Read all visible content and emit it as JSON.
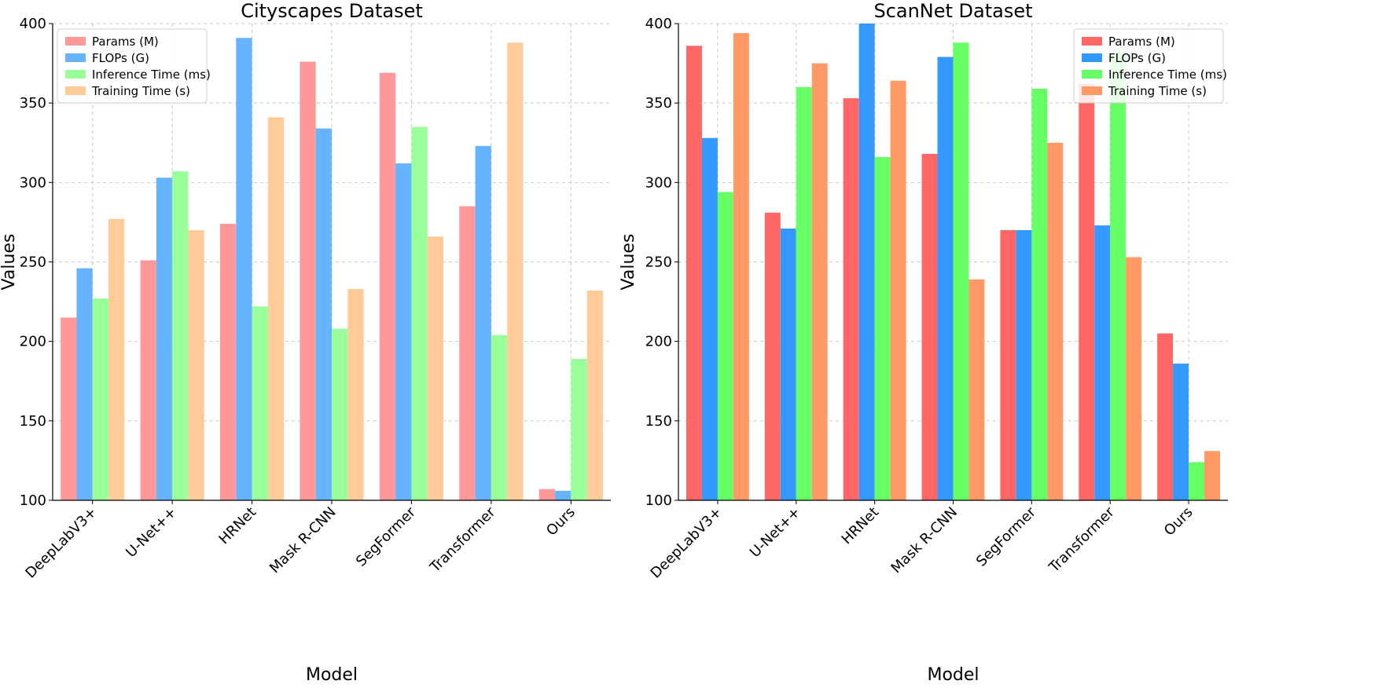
{
  "figure": {
    "background": "#ffffff"
  },
  "chart_data": [
    {
      "type": "bar",
      "title": "Cityscapes Dataset",
      "xlabel": "Model",
      "ylabel": "Values",
      "ylim": [
        100,
        400
      ],
      "yticks": [
        "100",
        "150",
        "200",
        "250",
        "300",
        "350",
        "400"
      ],
      "grid": true,
      "legend_position": "top-left",
      "categories": [
        "DeepLabV3+",
        "U-Net++",
        "HRNet",
        "Mask R-CNN",
        "SegFormer",
        "Transformer",
        "Ours"
      ],
      "series": [
        {
          "name": "Params (M)",
          "color": "#ff9999",
          "values": [
            215,
            251,
            274,
            376,
            369,
            285,
            107
          ]
        },
        {
          "name": "FLOPs (G)",
          "color": "#66b3ff",
          "values": [
            246,
            303,
            391,
            334,
            312,
            323,
            106
          ]
        },
        {
          "name": "Inference Time (ms)",
          "color": "#99ff99",
          "values": [
            227,
            307,
            222,
            208,
            335,
            204,
            189
          ]
        },
        {
          "name": "Training Time (s)",
          "color": "#ffcc99",
          "values": [
            277,
            270,
            341,
            233,
            266,
            388,
            232
          ]
        }
      ]
    },
    {
      "type": "bar",
      "title": "ScanNet Dataset",
      "xlabel": "Model",
      "ylabel": "Values",
      "ylim": [
        100,
        400
      ],
      "yticks": [
        "100",
        "150",
        "200",
        "250",
        "300",
        "350",
        "400"
      ],
      "grid": true,
      "legend_position": "top-right",
      "categories": [
        "DeepLabV3+",
        "U-Net++",
        "HRNet",
        "Mask R-CNN",
        "SegFormer",
        "Transformer",
        "Ours"
      ],
      "series": [
        {
          "name": "Params (M)",
          "color": "#ff6666",
          "values": [
            386,
            281,
            353,
            318,
            270,
            362,
            205
          ]
        },
        {
          "name": "FLOPs (G)",
          "color": "#3399ff",
          "values": [
            328,
            271,
            400,
            379,
            270,
            273,
            186
          ]
        },
        {
          "name": "Inference Time (ms)",
          "color": "#66ff66",
          "values": [
            294,
            360,
            316,
            388,
            359,
            382,
            124
          ]
        },
        {
          "name": "Training Time (s)",
          "color": "#ff9966",
          "values": [
            394,
            375,
            364,
            239,
            325,
            253,
            131
          ]
        }
      ]
    }
  ]
}
